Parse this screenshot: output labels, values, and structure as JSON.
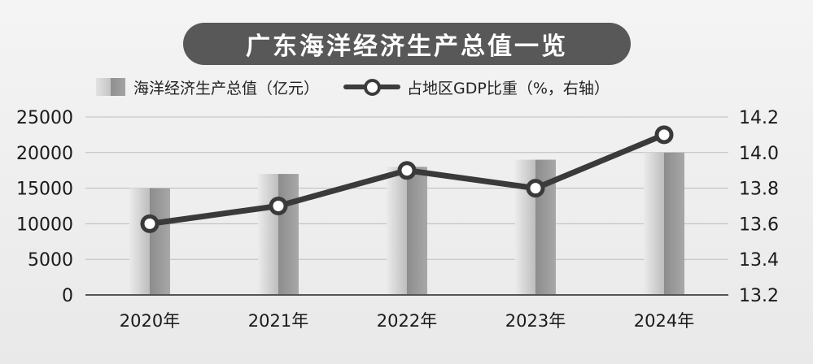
{
  "title": "广东海洋经济生产总值一览",
  "legend": {
    "bar_label": "海洋经济生产总值（亿元）",
    "line_label": "占地区GDP比重（%，右轴）"
  },
  "chart_data": {
    "type": "bar",
    "title": "广东海洋经济生产总值一览",
    "categories": [
      "2020年",
      "2021年",
      "2022年",
      "2023年",
      "2024年"
    ],
    "series": [
      {
        "name": "海洋经济生产总值（亿元）",
        "type": "bar",
        "axis": "left",
        "values": [
          15000,
          17000,
          18000,
          19000,
          20000
        ]
      },
      {
        "name": "占地区GDP比重（%，右轴）",
        "type": "line",
        "axis": "right",
        "values": [
          13.6,
          13.7,
          13.9,
          13.8,
          14.1
        ]
      }
    ],
    "y_left": {
      "min": 0,
      "max": 25000,
      "ticks": [
        "0",
        "5000",
        "10000",
        "15000",
        "20000",
        "25000"
      ]
    },
    "y_right": {
      "min": 13.2,
      "max": 14.2,
      "ticks": [
        "13.2",
        "13.4",
        "13.6",
        "13.8",
        "14.0",
        "14.2"
      ]
    },
    "grid": true,
    "legend_position": "top-left"
  }
}
